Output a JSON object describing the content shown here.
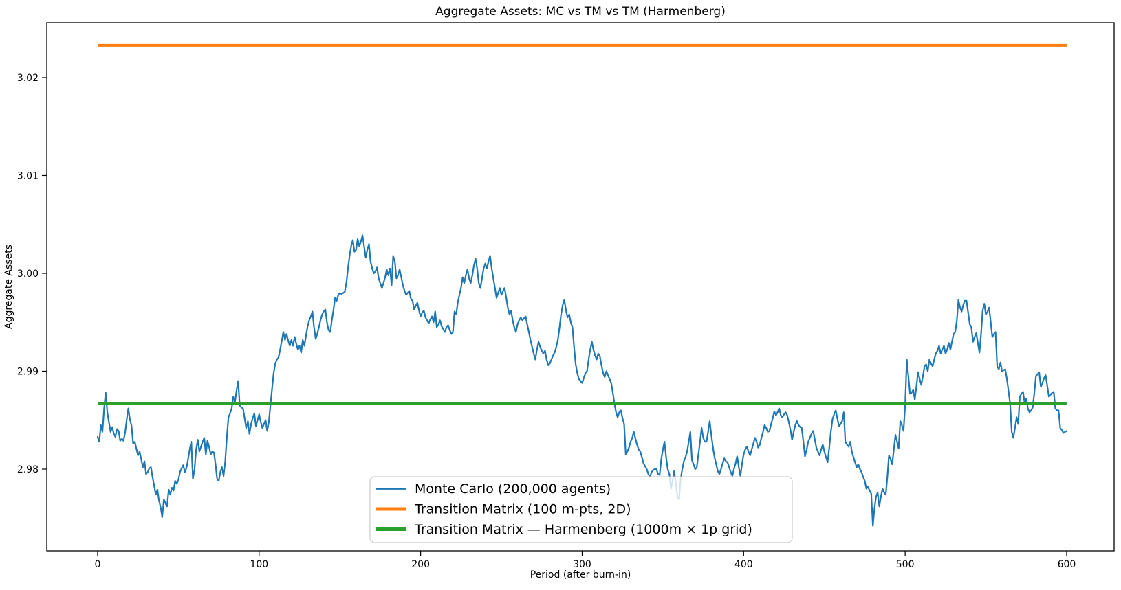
{
  "chart_data": {
    "type": "line",
    "title": "Aggregate Assets: MC vs TM vs TM (Harmenberg)",
    "xlabel": "Period (after burn-in)",
    "ylabel": "Aggregate Assets",
    "x_ticks": [
      0,
      100,
      200,
      300,
      400,
      500,
      600
    ],
    "x_tick_labels": [
      "0",
      "100",
      "200",
      "300",
      "400",
      "500",
      "600"
    ],
    "y_ticks": [
      2.98,
      2.99,
      3.0,
      3.01,
      3.02
    ],
    "y_tick_labels": [
      "2.98",
      "2.99",
      "3.00",
      "3.01",
      "3.02"
    ],
    "xlim": [
      -31.5,
      629.4
    ],
    "ylim": [
      2.97165,
      3.02561
    ],
    "grid": false,
    "legend_position": "lower center",
    "series": [
      {
        "name": "Monte Carlo (200,000 agents)",
        "color": "#1f77b4",
        "style": "noisy-line",
        "x_start": 0,
        "x_step": 1,
        "values": [
          2.9833,
          2.9828,
          2.9845,
          2.9838,
          2.9862,
          2.9878,
          2.9858,
          2.9848,
          2.9838,
          2.9843,
          2.9836,
          2.9833,
          2.9841,
          2.9839,
          2.9829,
          2.9831,
          2.9829,
          2.9837,
          2.985,
          2.9862,
          2.9851,
          2.9844,
          2.9826,
          2.9828,
          2.9821,
          2.9814,
          2.9818,
          2.981,
          2.9802,
          2.9808,
          2.9795,
          2.9797,
          2.9801,
          2.9802,
          2.9792,
          2.9783,
          2.9774,
          2.9779,
          2.9768,
          2.9761,
          2.9751,
          2.9769,
          2.9765,
          2.9762,
          2.9779,
          2.9774,
          2.9781,
          2.9778,
          2.9788,
          2.9785,
          2.9789,
          2.9797,
          2.9801,
          2.9804,
          2.9797,
          2.9801,
          2.981,
          2.982,
          2.9828,
          2.979,
          2.98,
          2.982,
          2.983,
          2.9818,
          2.9823,
          2.9828,
          2.9832,
          2.9815,
          2.9829,
          2.9823,
          2.9815,
          2.9818,
          2.9817,
          2.9805,
          2.979,
          2.9788,
          2.9797,
          2.9802,
          2.9793,
          2.9808,
          2.9832,
          2.9853,
          2.9857,
          2.9862,
          2.9874,
          2.9868,
          2.988,
          2.989,
          2.9865,
          2.9863,
          2.9862,
          2.9852,
          2.9842,
          2.9849,
          2.9836,
          2.9846,
          2.9852,
          2.9857,
          2.9844,
          2.985,
          2.9856,
          2.9848,
          2.9842,
          2.9846,
          2.985,
          2.9839,
          2.9848,
          2.9865,
          2.9882,
          2.9898,
          2.9908,
          2.9912,
          2.9914,
          2.9922,
          2.9931,
          2.994,
          2.9932,
          2.9938,
          2.9931,
          2.9926,
          2.9932,
          2.9926,
          2.9935,
          2.9928,
          2.9922,
          2.9926,
          2.9919,
          2.9932,
          2.9926,
          2.9936,
          2.9946,
          2.9952,
          2.9956,
          2.9961,
          2.9945,
          2.9933,
          2.9938,
          2.9945,
          2.9952,
          2.9958,
          2.9961,
          2.9963,
          2.995,
          2.9942,
          2.994,
          2.9952,
          2.9962,
          2.9975,
          2.9972,
          2.9978,
          2.998,
          2.9979,
          2.998,
          2.9981,
          2.999,
          3.0005,
          3.0018,
          3.0028,
          3.0034,
          3.0022,
          3.0024,
          3.0035,
          3.0028,
          3.0032,
          3.0039,
          3.0028,
          3.0016,
          3.0024,
          3.003,
          3.0012,
          3.0005,
          3.0,
          3.0002,
          3.0006,
          2.9995,
          2.999,
          2.9985,
          2.999,
          2.9996,
          3.0004,
          2.9998,
          3.0005,
          2.9988,
          3.0018,
          3.0012,
          2.9995,
          2.9998,
          3.0004,
          2.9996,
          2.9988,
          2.9982,
          2.9978,
          2.998,
          2.9982,
          2.9974,
          2.9972,
          2.9963,
          2.9967,
          2.997,
          2.9962,
          2.9956,
          2.996,
          2.9962,
          2.9955,
          2.9952,
          2.9949,
          2.9953,
          2.9956,
          2.995,
          2.9961,
          2.9945,
          2.9948,
          2.9952,
          2.9946,
          2.9943,
          2.994,
          2.9945,
          2.9947,
          2.9942,
          2.9938,
          2.994,
          2.9961,
          2.9958,
          2.997,
          2.9978,
          2.9985,
          2.9996,
          2.999,
          2.9998,
          3.0004,
          2.9995,
          2.999,
          2.9998,
          3.0008,
          3.0015,
          3.0005,
          2.999,
          2.9985,
          2.9995,
          3.0005,
          3.001,
          3.0005,
          3.0012,
          3.0018,
          3.0005,
          2.9995,
          2.9985,
          2.9975,
          2.998,
          2.9985,
          2.9978,
          2.9982,
          2.9985,
          2.9975,
          2.9965,
          2.9958,
          2.9962,
          2.9952,
          2.9945,
          2.994,
          2.9948,
          2.9952,
          2.9955,
          2.9952,
          2.9954,
          2.9956,
          2.9948,
          2.994,
          2.9932,
          2.9925,
          2.9918,
          2.9912,
          2.9922,
          2.993,
          2.9925,
          2.9921,
          2.9918,
          2.9921,
          2.9912,
          2.9906,
          2.9908,
          2.9912,
          2.9916,
          2.9919,
          2.9925,
          2.9932,
          2.9945,
          2.9958,
          2.9968,
          2.9973,
          2.9962,
          2.9955,
          2.9958,
          2.995,
          2.9945,
          2.9925,
          2.9907,
          2.9898,
          2.9892,
          2.989,
          2.9888,
          2.9893,
          2.9898,
          2.99,
          2.9912,
          2.9922,
          2.993,
          2.9922,
          2.9916,
          2.9912,
          2.9918,
          2.9915,
          2.9906,
          2.9898,
          2.9894,
          2.99,
          2.9896,
          2.9892,
          2.9888,
          2.9878,
          2.9867,
          2.9858,
          2.9853,
          2.9858,
          2.986,
          2.9852,
          2.9846,
          2.9815,
          2.9818,
          2.9822,
          2.9828,
          2.9832,
          2.9838,
          2.9831,
          2.9825,
          2.982,
          2.9818,
          2.9812,
          2.9806,
          2.9803,
          2.98,
          2.9795,
          2.9792,
          2.9797,
          2.9799,
          2.98,
          2.98,
          2.9795,
          2.9794,
          2.981,
          2.982,
          2.9828,
          2.9812,
          2.98,
          2.9795,
          2.978,
          2.9788,
          2.9798,
          2.9785,
          2.9772,
          2.9769,
          2.979,
          2.98,
          2.9808,
          2.9812,
          2.9818,
          2.9828,
          2.9838,
          2.9809,
          2.9805,
          2.98,
          2.9802,
          2.9815,
          2.9828,
          2.9842,
          2.9832,
          2.9828,
          2.9828,
          2.9838,
          2.9849,
          2.9835,
          2.9822,
          2.9812,
          2.9805,
          2.9798,
          2.9795,
          2.98,
          2.9806,
          2.9811,
          2.9808,
          2.9807,
          2.9802,
          2.9797,
          2.9793,
          2.98,
          2.9806,
          2.9813,
          2.9802,
          2.9793,
          2.9805,
          2.9815,
          2.982,
          2.9823,
          2.9818,
          2.9814,
          2.982,
          2.9826,
          2.9832,
          2.9828,
          2.9822,
          2.9825,
          2.9832,
          2.9838,
          2.9845,
          2.9842,
          2.9838,
          2.9839,
          2.9846,
          2.9852,
          2.9859,
          2.9855,
          2.9858,
          2.9862,
          2.9855,
          2.9853,
          2.9856,
          2.9858,
          2.9855,
          2.9848,
          2.984,
          2.983,
          2.9838,
          2.9845,
          2.9849,
          2.9845,
          2.9843,
          2.9842,
          2.9828,
          2.9813,
          2.982,
          2.9828,
          2.9832,
          2.9836,
          2.9839,
          2.9831,
          2.9822,
          2.9818,
          2.9814,
          2.982,
          2.9825,
          2.9818,
          2.9812,
          2.9807,
          2.9822,
          2.9838,
          2.9851,
          2.9856,
          2.986,
          2.9852,
          2.9844,
          2.9846,
          2.9849,
          2.9858,
          2.9828,
          2.9825,
          2.9823,
          2.9828,
          2.9818,
          2.9812,
          2.9807,
          2.9802,
          2.9805,
          2.98,
          2.9797,
          2.9792,
          2.9788,
          2.978,
          2.9782,
          2.9778,
          2.9775,
          2.9742,
          2.976,
          2.9772,
          2.9776,
          2.9762,
          2.9772,
          2.978,
          2.9776,
          2.9774,
          2.9792,
          2.9814,
          2.981,
          2.9805,
          2.982,
          2.9835,
          2.9828,
          2.9821,
          2.9849,
          2.9845,
          2.9839,
          2.9865,
          2.9912,
          2.9895,
          2.9877,
          2.9878,
          2.9881,
          2.9871,
          2.9885,
          2.9899,
          2.9892,
          2.9886,
          2.9895,
          2.9905,
          2.9907,
          2.99,
          2.9912,
          2.9908,
          2.9905,
          2.9912,
          2.9918,
          2.9921,
          2.9926,
          2.9918,
          2.9922,
          2.9926,
          2.9918,
          2.9922,
          2.9929,
          2.9922,
          2.993,
          2.9938,
          2.994,
          2.9952,
          2.9973,
          2.9965,
          2.9961,
          2.9968,
          2.9972,
          2.9972,
          2.996,
          2.9948,
          2.9945,
          2.993,
          2.9935,
          2.9939,
          2.9929,
          2.9919,
          2.9938,
          2.9962,
          2.9969,
          2.9958,
          2.9961,
          2.9965,
          2.995,
          2.9935,
          2.9938,
          2.994,
          2.9905,
          2.9902,
          2.9909,
          2.99,
          2.9901,
          2.9902,
          2.9892,
          2.988,
          2.9867,
          2.9838,
          2.9832,
          2.9842,
          2.9853,
          2.9846,
          2.9874,
          2.9877,
          2.9879,
          2.9867,
          2.9872,
          2.9862,
          2.9858,
          2.986,
          2.9863,
          2.9878,
          2.9895,
          2.9897,
          2.9899,
          2.9884,
          2.9888,
          2.9893,
          2.9896,
          2.9885,
          2.9874,
          2.9876,
          2.9878,
          2.9879,
          2.9862,
          2.986,
          2.986,
          2.9842,
          2.984,
          2.9837,
          2.9838,
          2.9839
        ]
      },
      {
        "name": "Transition Matrix (100 m-pts, 2D)",
        "color": "#ff7f0e",
        "style": "hline",
        "value": 3.0233,
        "x_range": [
          0,
          600
        ]
      },
      {
        "name": "Transition Matrix — Harmenberg (1000m × 1p grid)",
        "color": "#2ca02c",
        "style": "hline",
        "value": 2.9867,
        "x_range": [
          0,
          600
        ]
      }
    ]
  }
}
